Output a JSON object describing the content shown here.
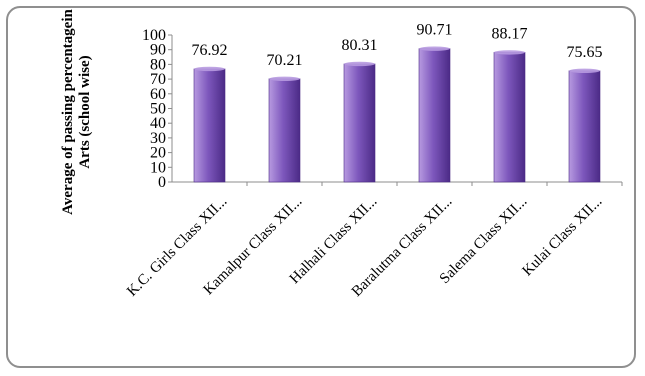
{
  "chart_data": {
    "type": "bar",
    "categories": [
      "K.C. Girls Class XII...",
      "Kamalpur Class XII...",
      "Halhali Class XII...",
      "Baralutma Class XII...",
      "Salema Class XII...",
      "Kulai Class XII..."
    ],
    "values": [
      76.92,
      70.21,
      80.31,
      90.71,
      88.17,
      75.65
    ],
    "data_labels": [
      "76.92",
      "70.21",
      "80.31",
      "90.71",
      "88.17",
      "75.65"
    ],
    "title": "",
    "xlabel": "",
    "ylabel": "Average of passing percentagein Arts  (school wise)",
    "ylim": [
      0,
      100
    ],
    "yticks": [
      0,
      10,
      20,
      30,
      40,
      50,
      60,
      70,
      80,
      90,
      100
    ],
    "grid": false,
    "legend": "none",
    "colors": {
      "bar_light": "#b79ae0",
      "bar_mid": "#7e58bd",
      "bar_dark": "#4b2a86",
      "axis": "#8c8c8c",
      "frame": "#8f8f8f"
    }
  }
}
